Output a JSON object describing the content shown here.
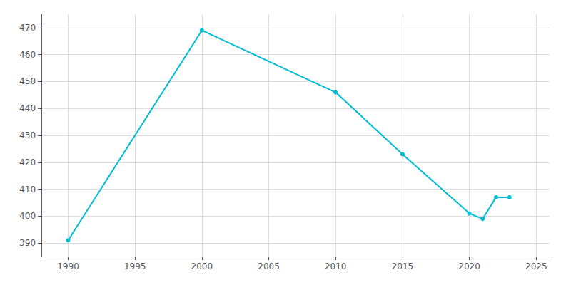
{
  "chart_data": {
    "type": "line",
    "x": [
      1990,
      2000,
      2010,
      2015,
      2020,
      2021,
      2022,
      2023
    ],
    "values": [
      391,
      469,
      446,
      423,
      401,
      399,
      407,
      407
    ],
    "color": "#00BCD4",
    "marker": "circle",
    "xlim": [
      1988,
      2026
    ],
    "xticks": [
      1990,
      1995,
      2000,
      2005,
      2010,
      2015,
      2020,
      2025
    ],
    "ylim": [
      385,
      475
    ],
    "yticks": [
      390,
      400,
      410,
      420,
      430,
      440,
      450,
      460,
      470
    ],
    "grid": true
  }
}
